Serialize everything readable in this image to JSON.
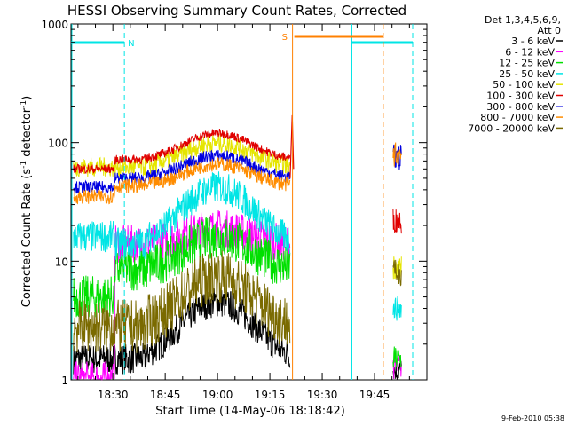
{
  "chart_data": {
    "type": "line",
    "title": "HESSI Observing Summary Count Rates, Corrected",
    "xlabel": "Start Time (14-May-06 18:18:42)",
    "ylabel_main": "Corrected Count Rate (s",
    "ylabel_sup1": "-1",
    "ylabel_mid": " detector",
    "ylabel_sup2": "-1",
    "ylabel_end": ")",
    "yscale": "log",
    "ylim": [
      1,
      1000
    ],
    "xlim_minutes": [
      18.3,
      20.0
    ],
    "x_ticks": [
      "18:30",
      "18:45",
      "19:00",
      "19:15",
      "19:30",
      "19:45"
    ],
    "y_ticks": [
      "1",
      "10",
      "100",
      "1000"
    ],
    "timestamp": "9-Feb-2010 05:38",
    "legend_header": [
      "Det 1,3,4,5,6,9,",
      "Att 0"
    ],
    "legend_position": "top-right",
    "flags": [
      {
        "label": "N",
        "color": "#00e5e5"
      },
      {
        "label": "S",
        "color": "#ff8000"
      }
    ],
    "series": [
      {
        "name": "3 - 6 keV",
        "color": "#000000"
      },
      {
        "name": "6 - 12 keV",
        "color": "#ff00ff"
      },
      {
        "name": "12 - 25 keV",
        "color": "#00e000"
      },
      {
        "name": "25 - 50 keV",
        "color": "#00e5e5"
      },
      {
        "name": "50 - 100 keV",
        "color": "#e5e500"
      },
      {
        "name": "100 - 300 keV",
        "color": "#e00000"
      },
      {
        "name": "300 - 800 keV",
        "color": "#0000e0"
      },
      {
        "name": "800 - 7000 keV",
        "color": "#ff8c00"
      },
      {
        "name": "7000 - 20000 keV",
        "color": "#7a6a00"
      }
    ]
  }
}
